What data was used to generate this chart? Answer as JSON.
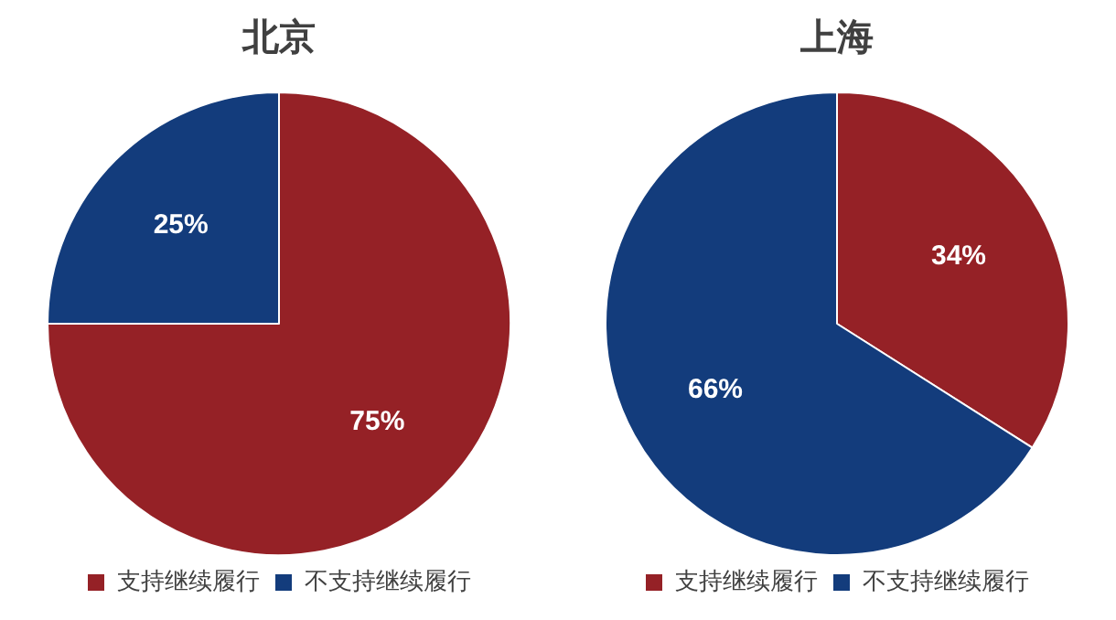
{
  "chart_data": [
    {
      "type": "pie",
      "title": "北京",
      "categories": [
        "支持继续履行",
        "不支持继续履行"
      ],
      "values": [
        75,
        25
      ],
      "colors": [
        "#952126",
        "#133c7c"
      ],
      "value_labels": [
        "75%",
        "25%"
      ],
      "legend": "bottom"
    },
    {
      "type": "pie",
      "title": "上海",
      "categories": [
        "支持继续履行",
        "不支持继续履行"
      ],
      "values": [
        34,
        66
      ],
      "colors": [
        "#952126",
        "#133c7c"
      ],
      "value_labels": [
        "34%",
        "66%"
      ],
      "legend": "bottom"
    }
  ]
}
